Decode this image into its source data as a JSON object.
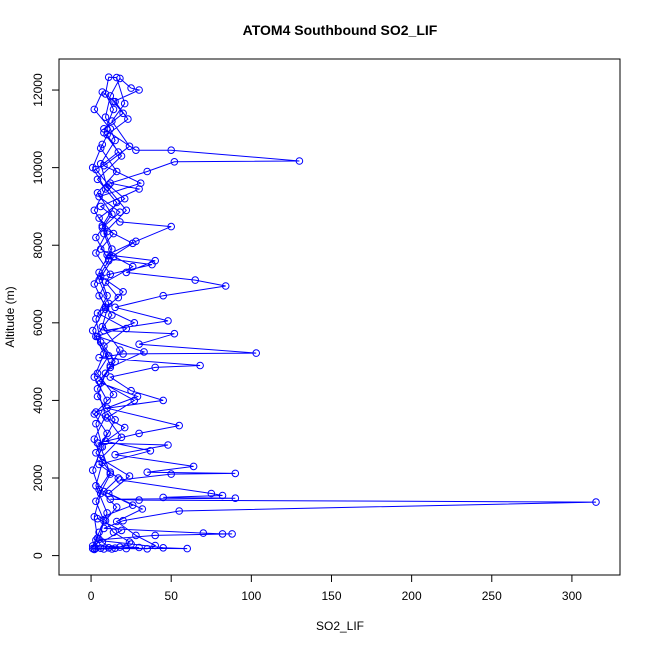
{
  "chart_data": {
    "type": "line",
    "title": "ATOM4 Southbound SO2_LIF",
    "xlabel": "SO2_LIF",
    "ylabel": "Altitude (m)",
    "xlim": [
      -20,
      330
    ],
    "ylim": [
      -500,
      12800
    ],
    "x_ticks": [
      0,
      50,
      100,
      150,
      200,
      250,
      300
    ],
    "y_ticks": [
      0,
      2000,
      4000,
      6000,
      8000,
      10000,
      12000
    ],
    "grid": false,
    "legend": "none",
    "series_color": "#0000ff",
    "series": [
      {
        "points": [
          [
            2,
            180
          ],
          [
            5,
            420
          ],
          [
            8,
            900
          ],
          [
            3,
            1400
          ],
          [
            12,
            2100
          ],
          [
            6,
            2800
          ],
          [
            15,
            3500
          ],
          [
            4,
            4100
          ],
          [
            9,
            4700
          ],
          [
            18,
            5300
          ],
          [
            7,
            5900
          ],
          [
            11,
            6500
          ],
          [
            5,
            7100
          ],
          [
            14,
            7700
          ],
          [
            8,
            8300
          ],
          [
            22,
            8900
          ],
          [
            10,
            9500
          ],
          [
            6,
            10100
          ],
          [
            15,
            10700
          ],
          [
            9,
            11300
          ],
          [
            12,
            11850
          ],
          [
            18,
            12300
          ],
          [
            25,
            12050
          ],
          [
            30,
            12000
          ],
          [
            14,
            11700
          ],
          [
            20,
            11400
          ],
          [
            8,
            11000
          ],
          [
            28,
            10450
          ],
          [
            50,
            10450
          ],
          [
            130,
            10170
          ],
          [
            52,
            10150
          ],
          [
            35,
            9900
          ],
          [
            12,
            9600
          ],
          [
            30,
            9450
          ],
          [
            6,
            9000
          ],
          [
            18,
            8600
          ],
          [
            50,
            8480
          ],
          [
            28,
            8100
          ],
          [
            10,
            7750
          ],
          [
            40,
            7600
          ],
          [
            22,
            7300
          ],
          [
            65,
            7100
          ],
          [
            84,
            6950
          ],
          [
            45,
            6700
          ],
          [
            15,
            6400
          ],
          [
            48,
            6050
          ],
          [
            8,
            5800
          ],
          [
            52,
            5720
          ],
          [
            30,
            5450
          ],
          [
            103,
            5220
          ],
          [
            20,
            5200
          ],
          [
            5,
            5100
          ],
          [
            68,
            4900
          ],
          [
            40,
            4850
          ],
          [
            12,
            4600
          ],
          [
            25,
            4250
          ],
          [
            45,
            4000
          ],
          [
            10,
            3800
          ],
          [
            55,
            3350
          ],
          [
            30,
            3150
          ],
          [
            4,
            2900
          ],
          [
            48,
            2850
          ],
          [
            15,
            2600
          ],
          [
            64,
            2300
          ],
          [
            35,
            2150
          ],
          [
            90,
            2120
          ],
          [
            50,
            2100
          ],
          [
            18,
            1950
          ],
          [
            75,
            1600
          ],
          [
            82,
            1550
          ],
          [
            45,
            1500
          ],
          [
            90,
            1480
          ],
          [
            12,
            1450
          ],
          [
            30,
            1430
          ],
          [
            315,
            1380
          ],
          [
            55,
            1150
          ],
          [
            20,
            900
          ],
          [
            8,
            700
          ],
          [
            70,
            580
          ],
          [
            82,
            560
          ],
          [
            88,
            560
          ],
          [
            40,
            520
          ],
          [
            3,
            400
          ],
          [
            25,
            300
          ],
          [
            45,
            200
          ],
          [
            60,
            180
          ],
          [
            15,
            190
          ],
          [
            2,
            160
          ],
          [
            8,
            170
          ],
          [
            30,
            210
          ],
          [
            1,
            250
          ],
          [
            5,
            600
          ],
          [
            10,
            1100
          ],
          [
            3,
            1800
          ],
          [
            7,
            2400
          ],
          [
            2,
            3000
          ],
          [
            9,
            3600
          ],
          [
            4,
            4300
          ],
          [
            12,
            4900
          ],
          [
            6,
            5500
          ],
          [
            3,
            6100
          ],
          [
            10,
            6700
          ],
          [
            5,
            7300
          ],
          [
            13,
            7900
          ],
          [
            7,
            8500
          ],
          [
            16,
            9100
          ],
          [
            4,
            9700
          ],
          [
            19,
            10300
          ],
          [
            8,
            10900
          ],
          [
            14,
            11500
          ],
          [
            9,
            11900
          ],
          [
            11,
            12330
          ],
          [
            16,
            12320
          ],
          [
            21,
            11650
          ],
          [
            13,
            11200
          ],
          [
            24,
            10550
          ],
          [
            8,
            10050
          ],
          [
            31,
            9600
          ],
          [
            5,
            9250
          ],
          [
            18,
            8850
          ],
          [
            7,
            8450
          ],
          [
            26,
            8050
          ],
          [
            11,
            7650
          ],
          [
            38,
            7500
          ],
          [
            6,
            7200
          ],
          [
            20,
            6800
          ],
          [
            9,
            6350
          ],
          [
            27,
            6000
          ],
          [
            4,
            5650
          ],
          [
            33,
            5250
          ],
          [
            12,
            4850
          ],
          [
            6,
            4450
          ],
          [
            29,
            4100
          ],
          [
            3,
            3700
          ],
          [
            21,
            3300
          ],
          [
            9,
            2950
          ],
          [
            37,
            2700
          ],
          [
            5,
            2350
          ],
          [
            17,
            2000
          ],
          [
            8,
            1650
          ],
          [
            26,
            1300
          ],
          [
            4,
            950
          ],
          [
            19,
            650
          ],
          [
            7,
            350
          ],
          [
            13,
            170
          ],
          [
            3,
            190
          ],
          [
            22,
            180
          ],
          [
            35,
            175
          ],
          [
            40,
            260
          ],
          [
            28,
            520
          ],
          [
            16,
            880
          ],
          [
            32,
            1200
          ],
          [
            11,
            1600
          ],
          [
            24,
            2050
          ],
          [
            6,
            2500
          ],
          [
            19,
            3050
          ],
          [
            10,
            3550
          ],
          [
            27,
            4000
          ],
          [
            5,
            4500
          ],
          [
            15,
            5000
          ],
          [
            8,
            5400
          ],
          [
            22,
            5850
          ],
          [
            4,
            6250
          ],
          [
            17,
            6650
          ],
          [
            9,
            7050
          ],
          [
            26,
            7450
          ],
          [
            6,
            7900
          ],
          [
            14,
            8300
          ],
          [
            5,
            8700
          ],
          [
            21,
            9200
          ],
          [
            11,
            9550
          ],
          [
            3,
            9950
          ],
          [
            17,
            10400
          ],
          [
            10,
            10850
          ],
          [
            23,
            11250
          ],
          [
            15,
            11700
          ],
          [
            7,
            11950
          ],
          [
            2,
            11500
          ],
          [
            12,
            11000
          ],
          [
            6,
            10500
          ],
          [
            16,
            9900
          ],
          [
            4,
            9350
          ],
          [
            13,
            8800
          ],
          [
            3,
            8200
          ],
          [
            11,
            7600
          ],
          [
            2,
            7000
          ],
          [
            9,
            6400
          ],
          [
            1,
            5800
          ],
          [
            8,
            5200
          ],
          [
            2,
            4600
          ],
          [
            10,
            4000
          ],
          [
            3,
            3400
          ],
          [
            7,
            2800
          ],
          [
            1,
            2200
          ],
          [
            6,
            1600
          ],
          [
            2,
            1000
          ],
          [
            4,
            450
          ],
          [
            1,
            180
          ],
          [
            6,
            190
          ],
          [
            11,
            200
          ],
          [
            18,
            220
          ],
          [
            24,
            350
          ],
          [
            14,
            600
          ],
          [
            9,
            900
          ],
          [
            16,
            1250
          ],
          [
            5,
            1700
          ],
          [
            12,
            2150
          ],
          [
            3,
            2650
          ],
          [
            10,
            3150
          ],
          [
            2,
            3650
          ],
          [
            14,
            4150
          ],
          [
            4,
            4700
          ],
          [
            11,
            5150
          ],
          [
            3,
            5650
          ],
          [
            13,
            6200
          ],
          [
            5,
            6700
          ],
          [
            12,
            7250
          ],
          [
            3,
            7800
          ],
          [
            10,
            8350
          ],
          [
            2,
            8900
          ],
          [
            9,
            9450
          ],
          [
            1,
            10000
          ],
          [
            7,
            10600
          ]
        ]
      }
    ]
  }
}
